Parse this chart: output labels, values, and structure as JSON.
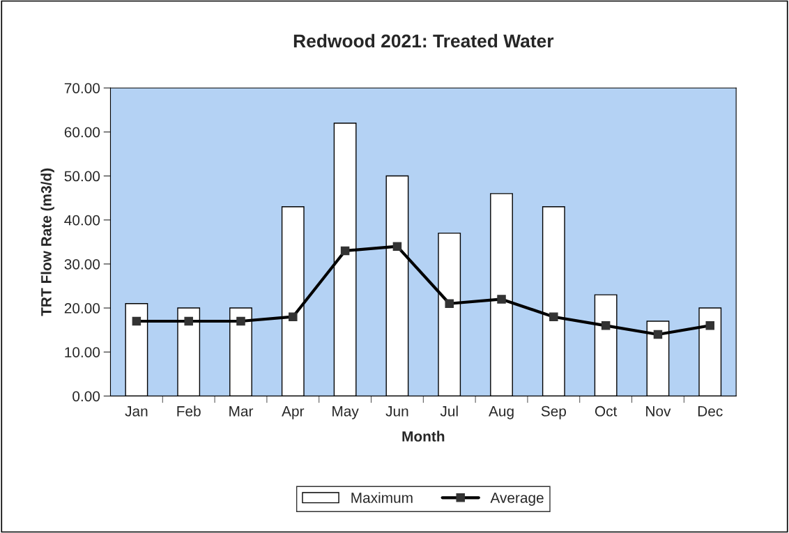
{
  "chart_data": {
    "type": "bar",
    "title": "Redwood 2021: Treated Water",
    "xlabel": "Month",
    "ylabel": "TRT Flow Rate (m3/d)",
    "categories": [
      "Jan",
      "Feb",
      "Mar",
      "Apr",
      "May",
      "Jun",
      "Jul",
      "Aug",
      "Sep",
      "Oct",
      "Nov",
      "Dec"
    ],
    "series": [
      {
        "name": "Maximum",
        "color": "#ffffff",
        "values": [
          21,
          20,
          20,
          43,
          62,
          50,
          37,
          46,
          43,
          23,
          17,
          20
        ]
      },
      {
        "name": "Average",
        "type": "line",
        "color": "#000000",
        "marker": "square",
        "values": [
          17,
          17,
          17,
          18,
          33,
          34,
          21,
          22,
          18,
          16,
          14,
          16
        ]
      }
    ],
    "ylim": [
      0,
      70
    ],
    "yticks": [
      {
        "value": 0,
        "label": "0.00"
      },
      {
        "value": 10,
        "label": "10.00"
      },
      {
        "value": 20,
        "label": "20.00"
      },
      {
        "value": 30,
        "label": "30.00"
      },
      {
        "value": 40,
        "label": "40.00"
      },
      {
        "value": 50,
        "label": "50.00"
      },
      {
        "value": 60,
        "label": "60.00"
      },
      {
        "value": 70,
        "label": "70.00"
      }
    ],
    "grid": false,
    "legend": "bottom"
  }
}
